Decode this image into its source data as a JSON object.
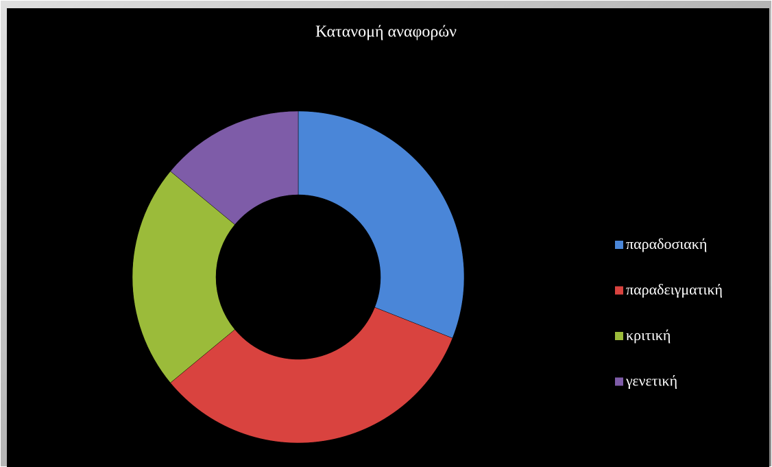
{
  "chart_data": {
    "type": "donut",
    "title": "Κατανομή αναφορών",
    "categories": [
      "παραδοσιακή",
      "παραδειγματική",
      "κριτική",
      "γενετική"
    ],
    "values": [
      31,
      33,
      22,
      14
    ],
    "colors": [
      "#4a86d8",
      "#d9433f",
      "#9bbb3a",
      "#7e5ca8"
    ],
    "legend": "right"
  }
}
